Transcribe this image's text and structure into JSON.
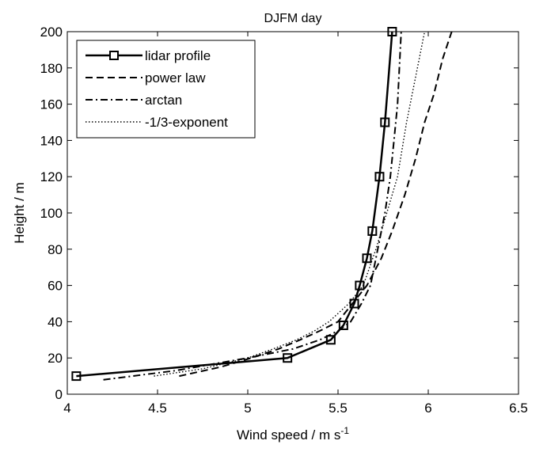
{
  "chart_data": {
    "type": "line",
    "title": "DJFM day",
    "xlabel": "Wind speed / m s",
    "xlabel_sup": "-1",
    "ylabel": "Height / m",
    "xlim": [
      4,
      6.5
    ],
    "ylim": [
      0,
      200
    ],
    "xticks": [
      4,
      4.5,
      5,
      5.5,
      6,
      6.5
    ],
    "yticks": [
      0,
      20,
      40,
      60,
      80,
      100,
      120,
      140,
      160,
      180,
      200
    ],
    "xtick_labels": [
      "4",
      "4.5",
      "5",
      "5.5",
      "6",
      "6.5"
    ],
    "ytick_labels": [
      "0",
      "20",
      "40",
      "60",
      "80",
      "100",
      "120",
      "140",
      "160",
      "180",
      "200"
    ],
    "grid": false,
    "legend_position": "top-left",
    "series": [
      {
        "name": "lidar profile",
        "style": "solid",
        "marker": "square",
        "x": [
          4.05,
          5.22,
          5.46,
          5.53,
          5.59,
          5.62,
          5.66,
          5.69,
          5.73,
          5.76,
          5.8
        ],
        "y": [
          10,
          20,
          30,
          38,
          50,
          60,
          75,
          90,
          120,
          150,
          200
        ]
      },
      {
        "name": "power law",
        "style": "dashed",
        "marker": "none",
        "x": [
          4.62,
          4.85,
          5.02,
          5.17,
          5.29,
          5.4,
          5.5,
          5.58,
          5.66,
          5.74,
          5.8,
          5.87,
          5.93,
          5.98,
          6.03,
          6.08,
          6.13
        ],
        "y": [
          10,
          15,
          20,
          25,
          30,
          35,
          40,
          50,
          60,
          75,
          90,
          110,
          130,
          150,
          165,
          185,
          200
        ]
      },
      {
        "name": "arctan",
        "style": "dashdot",
        "marker": "none",
        "x": [
          4.2,
          4.6,
          5.0,
          5.25,
          5.4,
          5.5,
          5.57,
          5.63,
          5.68,
          5.72,
          5.76,
          5.79,
          5.81,
          5.83,
          5.84,
          5.85
        ],
        "y": [
          8,
          13,
          20,
          25,
          30,
          35,
          40,
          50,
          60,
          80,
          100,
          120,
          140,
          160,
          180,
          200
        ]
      },
      {
        "name": "-1/3-exponent",
        "style": "dotted",
        "marker": "none",
        "x": [
          4.48,
          4.75,
          5.0,
          5.14,
          5.27,
          5.37,
          5.45,
          5.56,
          5.64,
          5.71,
          5.77,
          5.83,
          5.88,
          5.93,
          5.98
        ],
        "y": [
          10,
          14,
          20,
          25,
          30,
          35,
          40,
          50,
          60,
          80,
          100,
          120,
          150,
          175,
          200
        ]
      }
    ]
  }
}
